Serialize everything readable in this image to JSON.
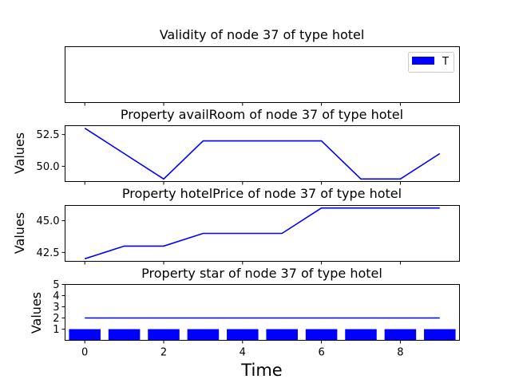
{
  "chart_data": [
    {
      "type": "bar",
      "title": "Validity of node 37 of type hotel",
      "xlabel": "",
      "ylabel": "",
      "series": [],
      "legend": {
        "entries": [
          {
            "label": "T",
            "color": "#0000ff"
          }
        ],
        "placement": "top-right"
      },
      "yticks": [],
      "xticks": [
        0,
        2,
        4,
        6,
        8
      ],
      "xlim": [
        -0.5,
        9.5
      ],
      "xtick_labels_visible": false
    },
    {
      "type": "line",
      "title": "Property availRoom of node 37 of type hotel",
      "xlabel": "",
      "ylabel": "Values",
      "x": [
        0,
        1,
        2,
        3,
        4,
        5,
        6,
        7,
        8,
        9
      ],
      "series": [
        {
          "values": [
            53,
            51,
            49,
            52,
            52,
            52,
            52,
            49,
            49,
            51
          ],
          "color": "#0000ff"
        }
      ],
      "ylim": [
        48.8,
        53.2
      ],
      "yticks": [
        50.0,
        52.5
      ],
      "ytick_labels": [
        "50.0",
        "52.5"
      ],
      "xticks": [
        0,
        2,
        4,
        6,
        8
      ],
      "xlim": [
        -0.5,
        9.5
      ],
      "xtick_labels_visible": false
    },
    {
      "type": "line",
      "title": "Property hotelPrice of node 37 of type hotel",
      "xlabel": "",
      "ylabel": "Values",
      "x": [
        0,
        1,
        2,
        3,
        4,
        5,
        6,
        7,
        8,
        9
      ],
      "series": [
        {
          "values": [
            42,
            43,
            43,
            44,
            44,
            44,
            46,
            46,
            46,
            46
          ],
          "color": "#0000ff"
        }
      ],
      "ylim": [
        41.8,
        46.2
      ],
      "yticks": [
        42.5,
        45.0
      ],
      "ytick_labels": [
        "42.5",
        "45.0"
      ],
      "xticks": [
        0,
        2,
        4,
        6,
        8
      ],
      "xlim": [
        -0.5,
        9.5
      ],
      "xtick_labels_visible": false
    },
    {
      "type": "bar",
      "title": "Property star of node 37 of type hotel",
      "xlabel": "Time",
      "ylabel": "Values",
      "x": [
        0,
        1,
        2,
        3,
        4,
        5,
        6,
        7,
        8,
        9
      ],
      "bars": {
        "values": [
          1,
          1,
          1,
          1,
          1,
          1,
          1,
          1,
          1,
          1
        ],
        "color": "#0000ff"
      },
      "line": {
        "values": [
          2,
          2,
          2,
          2,
          2,
          2,
          2,
          2,
          2,
          2
        ],
        "color": "#0000ff"
      },
      "ylim": [
        0,
        5
      ],
      "yticks": [
        1,
        2,
        3,
        4,
        5
      ],
      "ytick_labels": [
        "1",
        "2",
        "3",
        "4",
        "5"
      ],
      "xticks": [
        0,
        2,
        4,
        6,
        8
      ],
      "xtick_labels": [
        "0",
        "2",
        "4",
        "6",
        "8"
      ],
      "xlim": [
        -0.5,
        9.5
      ],
      "xtick_labels_visible": true
    }
  ]
}
